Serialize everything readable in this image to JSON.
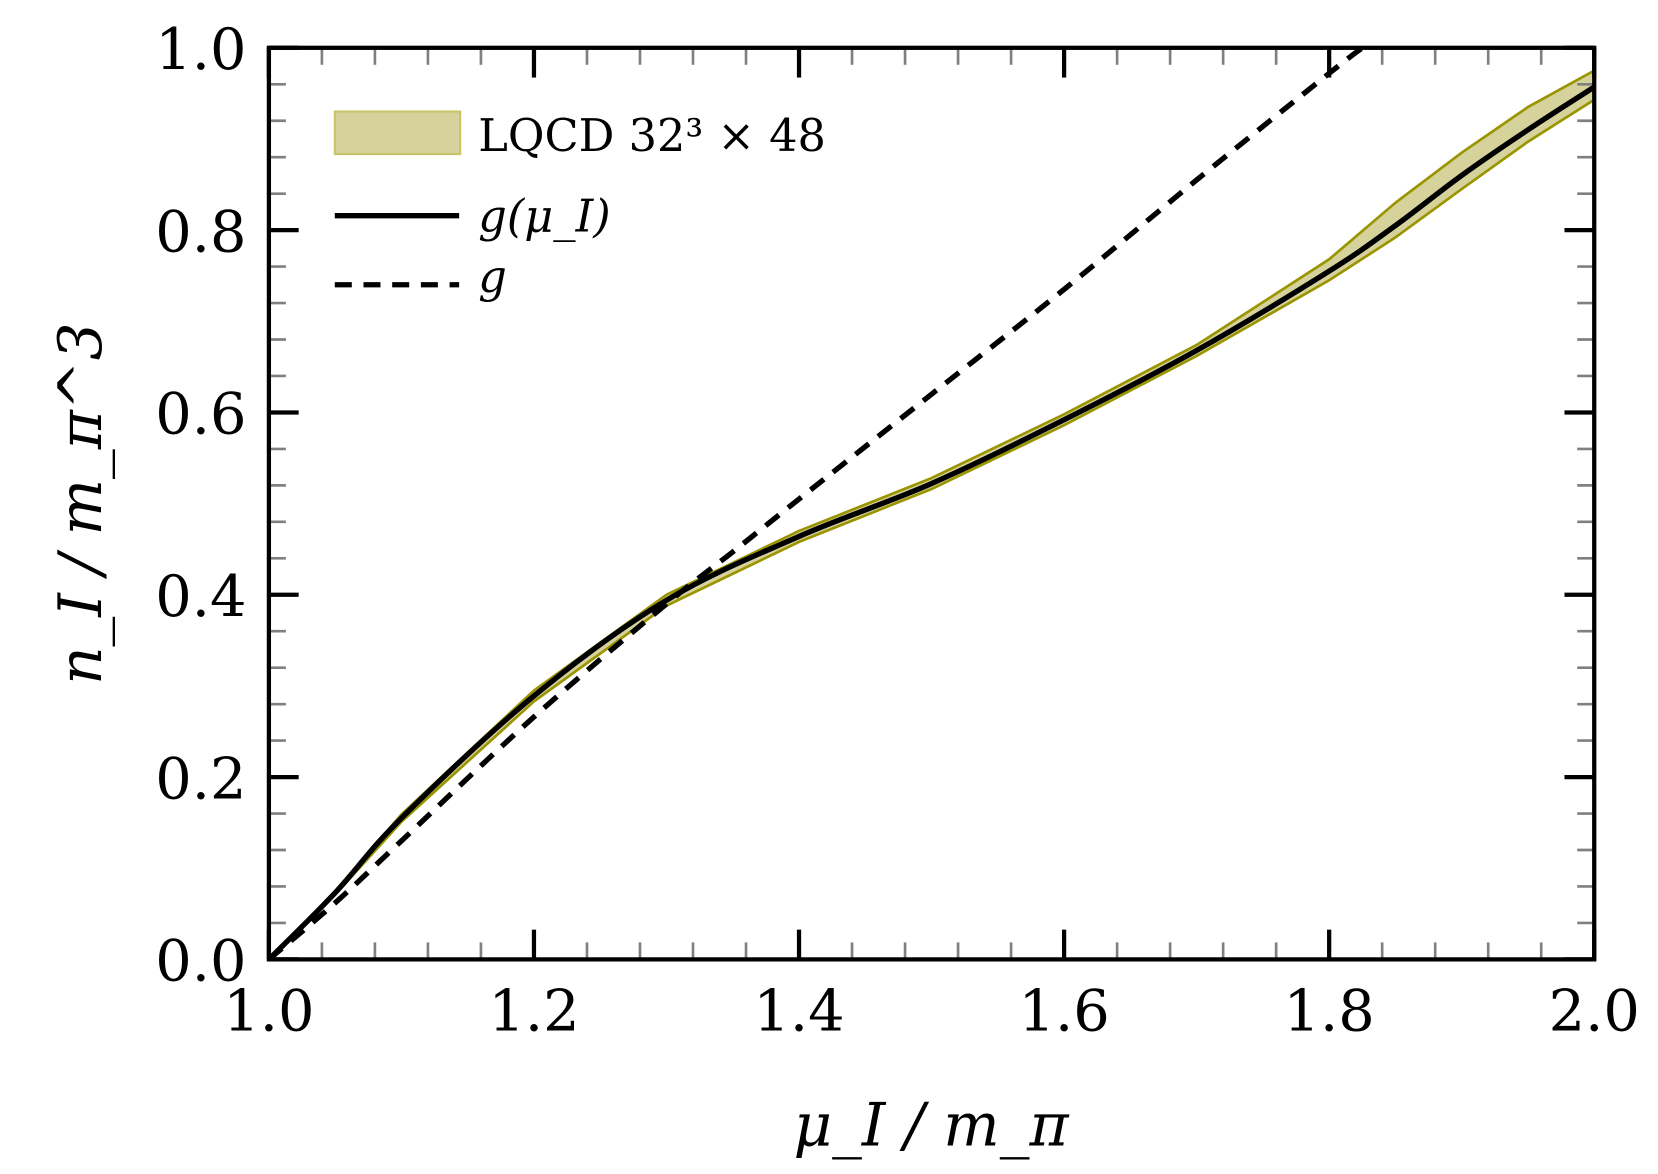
{
  "chart_data": {
    "type": "line",
    "xlabel": "μ_I / m_π",
    "ylabel": "n_I / m_π^3",
    "xlim": [
      1.0,
      2.0
    ],
    "ylim": [
      0.0,
      1.0
    ],
    "xticks": [
      "1.0",
      "1.2",
      "1.4",
      "1.6",
      "1.8",
      "2.0"
    ],
    "yticks": [
      "0.0",
      "0.2",
      "0.4",
      "0.6",
      "0.8",
      "1.0"
    ],
    "minor_ticks_per_major": 5,
    "grid": false,
    "legend_position": "top-left",
    "band": {
      "name": "LQCD 32³ × 48",
      "color": "#d6d29b",
      "edge_color": "#9a9400",
      "x": [
        1.0,
        1.05,
        1.1,
        1.2,
        1.3,
        1.4,
        1.5,
        1.6,
        1.7,
        1.8,
        1.85,
        1.9,
        1.95,
        2.0
      ],
      "lower": [
        0.0,
        0.071,
        0.151,
        0.283,
        0.388,
        0.458,
        0.516,
        0.586,
        0.662,
        0.745,
        0.792,
        0.845,
        0.897,
        0.943
      ],
      "upper": [
        0.0,
        0.075,
        0.159,
        0.295,
        0.4,
        0.47,
        0.528,
        0.598,
        0.674,
        0.768,
        0.83,
        0.885,
        0.935,
        0.975
      ]
    },
    "series": [
      {
        "name": "g(μ_I)",
        "style": "solid",
        "color": "#000000",
        "x": [
          1.0,
          1.05,
          1.1,
          1.2,
          1.3,
          1.4,
          1.5,
          1.6,
          1.7,
          1.8,
          1.85,
          1.9,
          1.95,
          2.0
        ],
        "y": [
          0.0,
          0.073,
          0.155,
          0.289,
          0.394,
          0.464,
          0.522,
          0.592,
          0.668,
          0.755,
          0.805,
          0.86,
          0.91,
          0.957
        ]
      },
      {
        "name": "g",
        "style": "dashed",
        "color": "#000000",
        "x": [
          1.0,
          1.05,
          1.1,
          1.2,
          1.3,
          1.35,
          1.4,
          1.5,
          1.6,
          1.7,
          1.8,
          1.825
        ],
        "y": [
          0.0,
          0.062,
          0.13,
          0.266,
          0.39,
          0.447,
          0.505,
          0.62,
          0.735,
          0.855,
          0.972,
          1.0
        ]
      }
    ]
  }
}
